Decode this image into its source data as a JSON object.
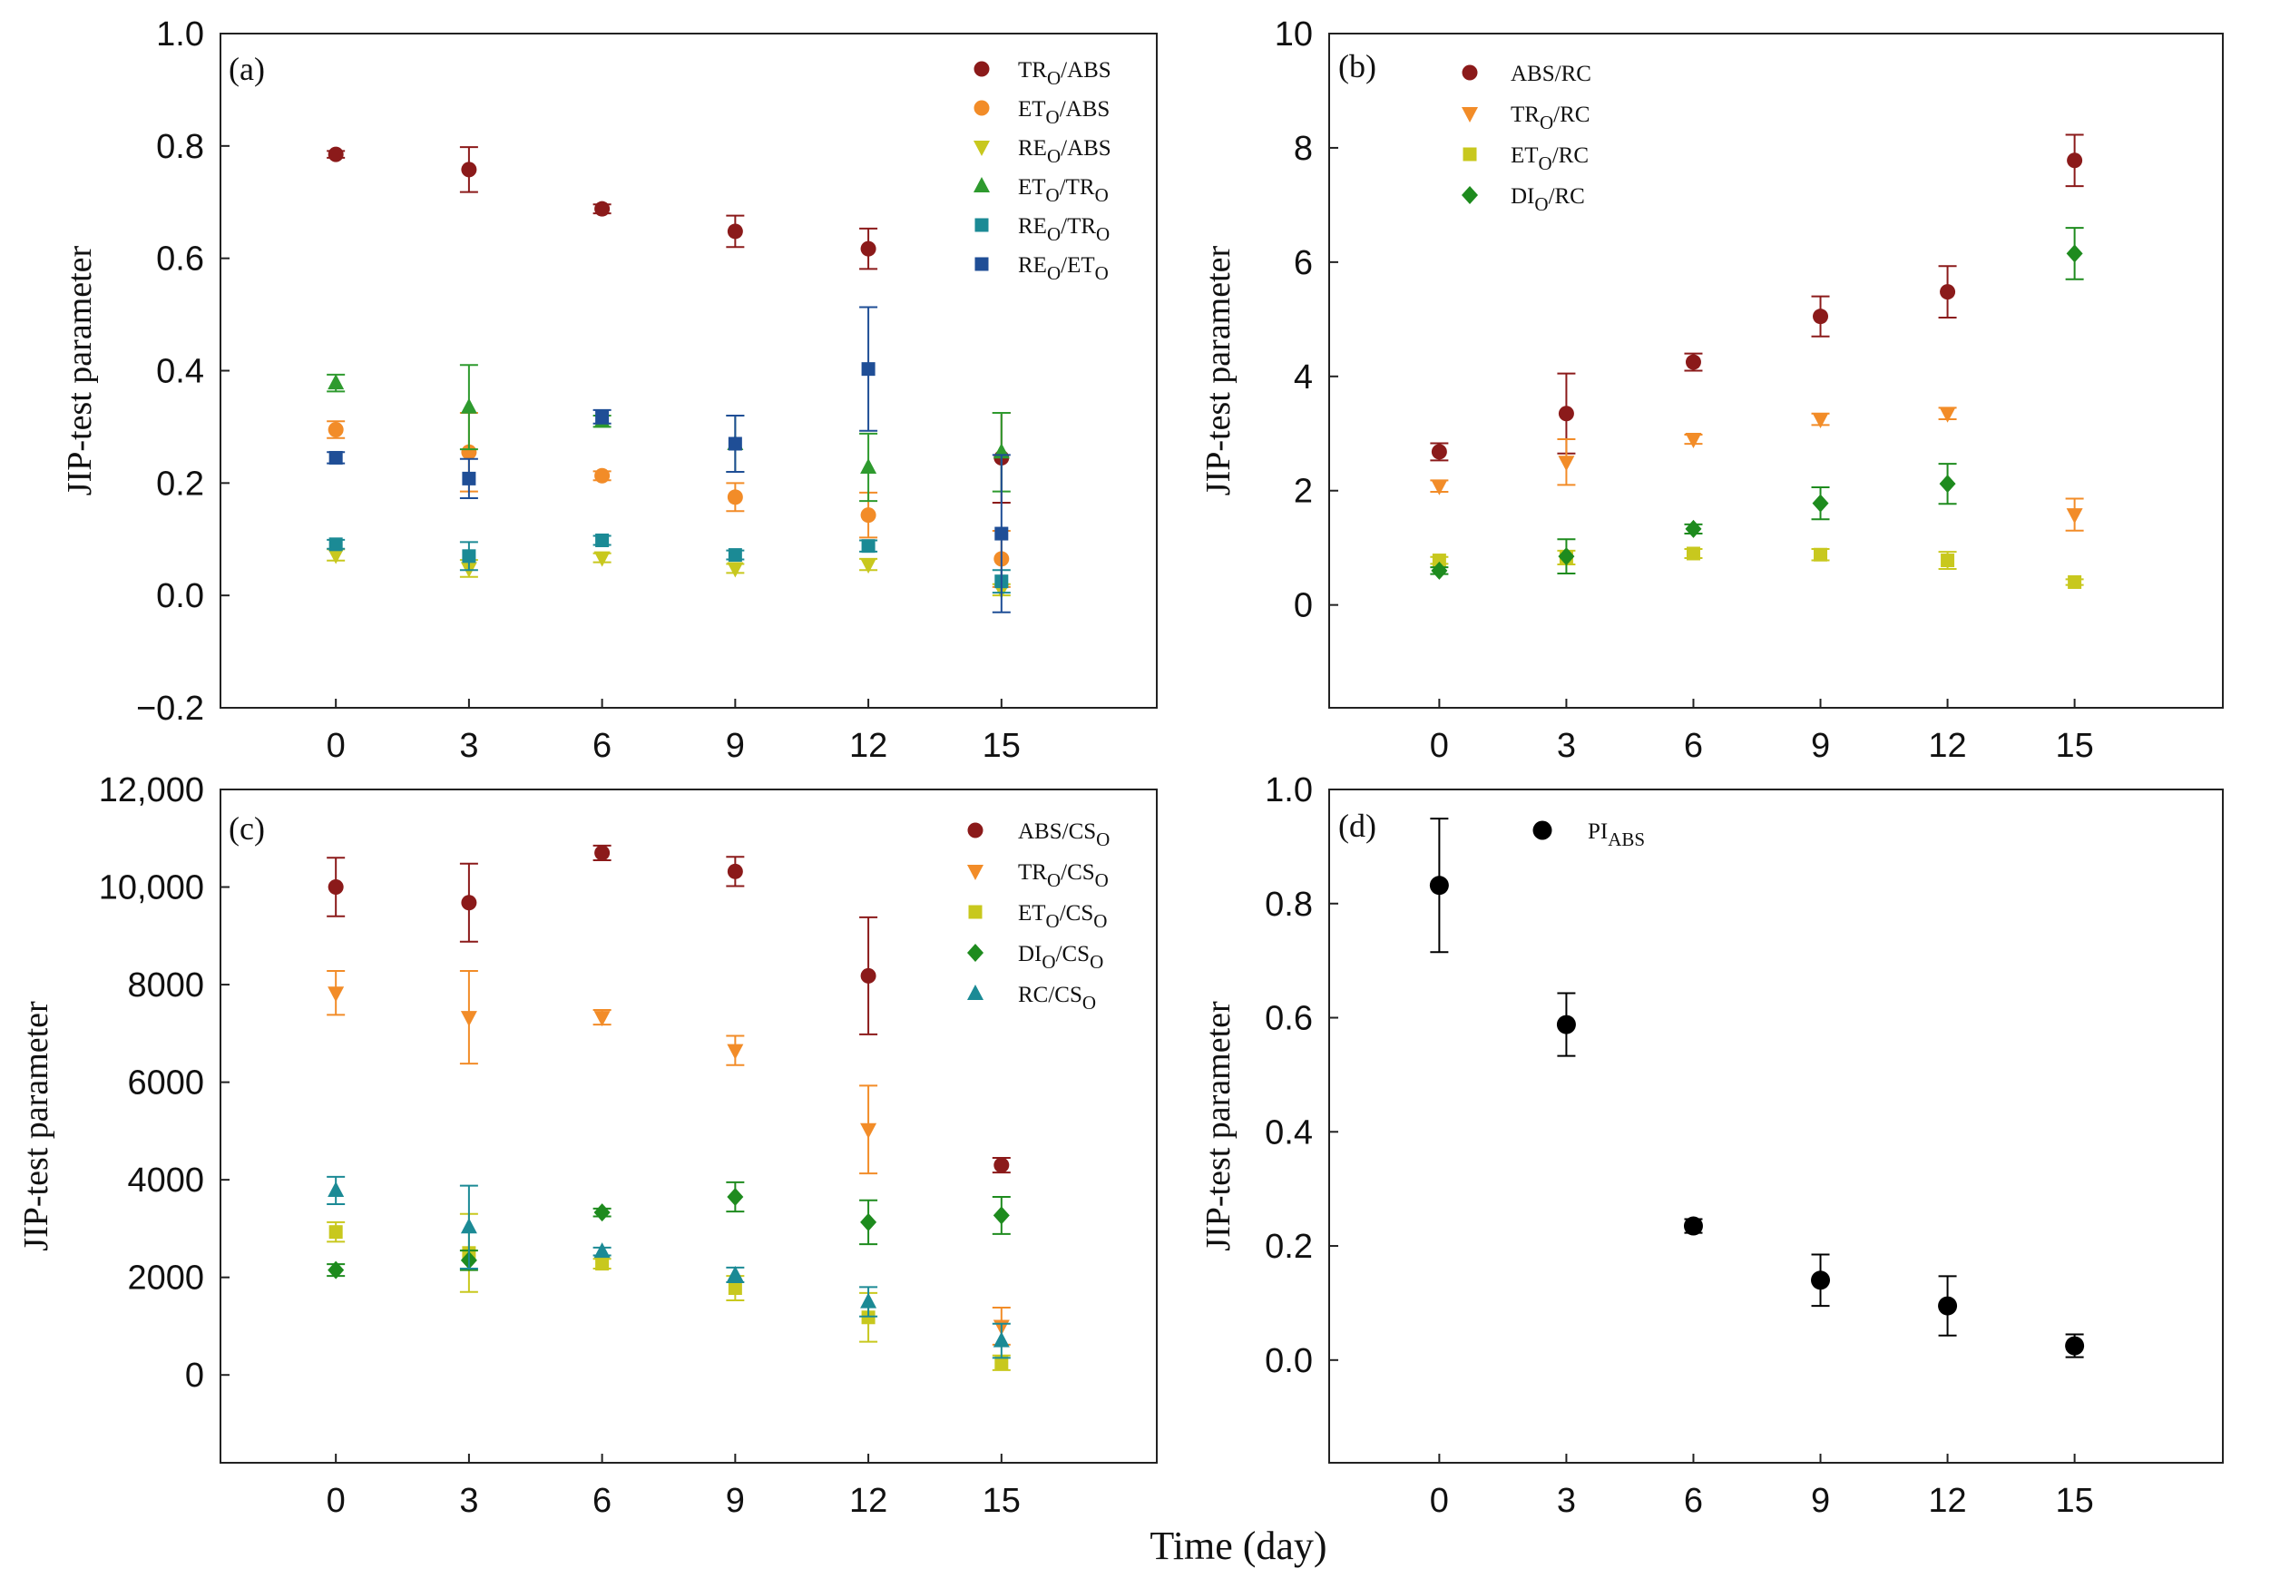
{
  "figure": {
    "x_label": "Time (day)"
  },
  "colors": {
    "darkred": "#8B1A1A",
    "orange": "#F28C28",
    "yellowgreen": "#C8C81E",
    "green": "#2E9A2E",
    "teal": "#1B8A95",
    "navy": "#1F4E96",
    "darkgreen": "#1E8B1E",
    "black": "#000000"
  },
  "chart_data": [
    {
      "panel": "(a)",
      "type": "scatter",
      "ylabel": "JIP-test parameter",
      "xlim": [
        -2.6,
        18.5
      ],
      "ylim": [
        -0.2,
        1.0
      ],
      "xticks": [
        0,
        3,
        6,
        9,
        12,
        15
      ],
      "xticklabels": [
        "0",
        "3",
        "6",
        "9",
        "12",
        "15"
      ],
      "yticks": [
        -0.2,
        0.0,
        0.2,
        0.4,
        0.6,
        0.8,
        1.0
      ],
      "yticklabels": [
        "−0.2",
        "0.0",
        "0.2",
        "0.4",
        "0.6",
        "0.8",
        "1.0"
      ],
      "legend_position": "top-right",
      "series": [
        {
          "name": "TRO/ABS",
          "label_main": "TR",
          "label_sub": "O",
          "label_rest": "/ABS",
          "marker": "circle",
          "color_key": "darkred",
          "x": [
            0,
            3,
            6,
            9,
            12,
            15
          ],
          "values": [
            0.785,
            0.758,
            0.688,
            0.648,
            0.617,
            0.245
          ],
          "errors": [
            0.006,
            0.04,
            0.008,
            0.028,
            0.036,
            0.08
          ]
        },
        {
          "name": "ETO/ABS",
          "label_main": "ET",
          "label_sub": "O",
          "label_rest": "/ABS",
          "marker": "circle",
          "color_key": "orange",
          "x": [
            0,
            3,
            6,
            9,
            12,
            15
          ],
          "values": [
            0.295,
            0.255,
            0.213,
            0.175,
            0.143,
            0.065
          ],
          "errors": [
            0.015,
            0.07,
            0.008,
            0.025,
            0.04,
            0.05
          ]
        },
        {
          "name": "REO/ABS",
          "label_main": "RE",
          "label_sub": "O",
          "label_rest": "/ABS",
          "marker": "triangle-down",
          "color_key": "yellowgreen",
          "x": [
            0,
            3,
            6,
            9,
            12,
            15
          ],
          "values": [
            0.072,
            0.048,
            0.067,
            0.048,
            0.055,
            0.01
          ],
          "errors": [
            0.01,
            0.015,
            0.008,
            0.008,
            0.01,
            0.01
          ]
        },
        {
          "name": "ETO/TRO",
          "label_main": "ET",
          "label_sub": "O",
          "label_rest": "/TR",
          "label_sub2": "O",
          "marker": "triangle-up",
          "color_key": "green",
          "x": [
            0,
            3,
            6,
            9,
            12,
            15
          ],
          "values": [
            0.378,
            0.335,
            0.31,
            0.27,
            0.228,
            0.255
          ],
          "errors": [
            0.015,
            0.075,
            0.01,
            0.05,
            0.06,
            0.07
          ]
        },
        {
          "name": "REO/TRO",
          "label_main": "RE",
          "label_sub": "O",
          "label_rest": "/TR",
          "label_sub2": "O",
          "marker": "square",
          "color_key": "teal",
          "x": [
            0,
            3,
            6,
            9,
            12,
            15
          ],
          "values": [
            0.091,
            0.07,
            0.098,
            0.072,
            0.088,
            0.025
          ],
          "errors": [
            0.008,
            0.025,
            0.008,
            0.008,
            0.01,
            0.02
          ]
        },
        {
          "name": "REO/ETO",
          "label_main": "RE",
          "label_sub": "O",
          "label_rest": "/ET",
          "label_sub2": "O",
          "marker": "square",
          "color_key": "navy",
          "x": [
            0,
            3,
            6,
            9,
            12,
            15
          ],
          "values": [
            0.245,
            0.208,
            0.318,
            0.27,
            0.403,
            0.11
          ],
          "errors": [
            0.01,
            0.035,
            0.012,
            0.05,
            0.11,
            0.14
          ]
        }
      ]
    },
    {
      "panel": "(b)",
      "type": "scatter",
      "ylabel": "JIP-test parameter",
      "xlim": [
        -2.6,
        18.5
      ],
      "ylim": [
        -1.8,
        10
      ],
      "xticks": [
        0,
        3,
        6,
        9,
        12,
        15
      ],
      "xticklabels": [
        "0",
        "3",
        "6",
        "9",
        "12",
        "15"
      ],
      "yticks": [
        0,
        2,
        4,
        6,
        8,
        10
      ],
      "yticklabels": [
        "0",
        "2",
        "4",
        "6",
        "8",
        "10"
      ],
      "legend_position": "top-left",
      "series": [
        {
          "name": "ABS/RC",
          "label_main": "ABS/RC",
          "marker": "circle",
          "color_key": "darkred",
          "x": [
            0,
            3,
            6,
            9,
            12,
            15
          ],
          "values": [
            2.68,
            3.35,
            4.25,
            5.05,
            5.48,
            7.78
          ],
          "errors": [
            0.15,
            0.7,
            0.15,
            0.35,
            0.45,
            0.45
          ]
        },
        {
          "name": "TRO/RC",
          "label_main": "TR",
          "label_sub": "O",
          "label_rest": "/RC",
          "marker": "triangle-down",
          "color_key": "orange",
          "x": [
            0,
            3,
            6,
            9,
            12,
            15
          ],
          "values": [
            2.08,
            2.5,
            2.9,
            3.25,
            3.35,
            1.58
          ],
          "errors": [
            0.1,
            0.4,
            0.08,
            0.1,
            0.1,
            0.28
          ]
        },
        {
          "name": "ETO/RC",
          "label_main": "ET",
          "label_sub": "O",
          "label_rest": "/RC",
          "marker": "square",
          "color_key": "yellowgreen",
          "x": [
            0,
            3,
            6,
            9,
            12,
            15
          ],
          "values": [
            0.78,
            0.83,
            0.9,
            0.88,
            0.78,
            0.4
          ],
          "errors": [
            0.06,
            0.12,
            0.08,
            0.1,
            0.15,
            0.05
          ]
        },
        {
          "name": "DIO/RC",
          "label_main": "DI",
          "label_sub": "O",
          "label_rest": "/RC",
          "marker": "diamond",
          "color_key": "darkgreen",
          "x": [
            0,
            3,
            6,
            9,
            12,
            15
          ],
          "values": [
            0.6,
            0.85,
            1.33,
            1.78,
            2.12,
            6.15
          ],
          "errors": [
            0.06,
            0.3,
            0.08,
            0.28,
            0.35,
            0.45
          ]
        }
      ]
    },
    {
      "panel": "(c)",
      "type": "scatter",
      "ylabel": "JIP-test parameter",
      "xlim": [
        -2.6,
        18.5
      ],
      "ylim": [
        -1800,
        12000
      ],
      "xticks": [
        0,
        3,
        6,
        9,
        12,
        15
      ],
      "xticklabels": [
        "0",
        "3",
        "6",
        "9",
        "12",
        "15"
      ],
      "yticks": [
        0,
        2000,
        4000,
        6000,
        8000,
        10000,
        12000
      ],
      "yticklabels": [
        "0",
        "2000",
        "4000",
        "6000",
        "8000",
        "10,000",
        "12,000"
      ],
      "legend_position": "top-right",
      "series": [
        {
          "name": "ABS/CSO",
          "label_main": "ABS/CS",
          "label_sub": "O",
          "marker": "circle",
          "color_key": "darkred",
          "x": [
            0,
            3,
            6,
            9,
            12,
            15
          ],
          "values": [
            10000,
            9680,
            10700,
            10320,
            8180,
            4300
          ],
          "errors": [
            600,
            800,
            150,
            300,
            1200,
            150
          ]
        },
        {
          "name": "TRO/CSO",
          "label_main": "TR",
          "label_sub": "O",
          "label_rest": "/CS",
          "label_sub2": "O",
          "marker": "triangle-down",
          "color_key": "orange",
          "x": [
            0,
            3,
            6,
            9,
            12,
            15
          ],
          "values": [
            7830,
            7330,
            7330,
            6650,
            5030,
            1000
          ],
          "errors": [
            450,
            950,
            150,
            300,
            900,
            380
          ]
        },
        {
          "name": "ETO/CSO",
          "label_main": "ET",
          "label_sub": "O",
          "label_rest": "/CS",
          "label_sub2": "O",
          "marker": "square",
          "color_key": "yellowgreen",
          "x": [
            0,
            3,
            6,
            9,
            12,
            15
          ],
          "values": [
            2930,
            2500,
            2280,
            1780,
            1180,
            250
          ],
          "errors": [
            200,
            800,
            100,
            250,
            500,
            150
          ]
        },
        {
          "name": "DIO/CSO",
          "label_main": "DI",
          "label_sub": "O",
          "label_rest": "/CS",
          "label_sub2": "O",
          "marker": "diamond",
          "color_key": "darkgreen",
          "x": [
            0,
            3,
            6,
            9,
            12,
            15
          ],
          "values": [
            2150,
            2350,
            3330,
            3650,
            3130,
            3270
          ],
          "errors": [
            120,
            200,
            80,
            300,
            450,
            380
          ]
        },
        {
          "name": "RC/CSO",
          "label_main": "RC/CS",
          "label_sub": "O",
          "marker": "triangle-up",
          "color_key": "teal",
          "x": [
            0,
            3,
            6,
            9,
            12,
            15
          ],
          "values": [
            3780,
            3030,
            2530,
            2050,
            1500,
            700
          ],
          "errors": [
            280,
            850,
            80,
            150,
            300,
            350
          ]
        }
      ]
    },
    {
      "panel": "(d)",
      "type": "scatter",
      "ylabel": "JIP-test parameter",
      "xlim": [
        -2.6,
        18.5
      ],
      "ylim": [
        -0.18,
        1.0
      ],
      "xticks": [
        0,
        3,
        6,
        9,
        12,
        15
      ],
      "xticklabels": [
        "0",
        "3",
        "6",
        "9",
        "12",
        "15"
      ],
      "yticks": [
        0.0,
        0.2,
        0.4,
        0.6,
        0.8,
        1.0
      ],
      "yticklabels": [
        "0.0",
        "0.2",
        "0.4",
        "0.6",
        "0.8",
        "1.0"
      ],
      "legend_position": "top-left",
      "series": [
        {
          "name": "PIABS",
          "label_main": "PI",
          "label_sub": "ABS",
          "marker": "circle-large",
          "color_key": "black",
          "x": [
            0,
            3,
            6,
            9,
            12,
            15
          ],
          "values": [
            0.832,
            0.588,
            0.235,
            0.14,
            0.095,
            0.025
          ],
          "errors": [
            0.117,
            0.055,
            0.012,
            0.045,
            0.052,
            0.02
          ]
        }
      ]
    }
  ]
}
